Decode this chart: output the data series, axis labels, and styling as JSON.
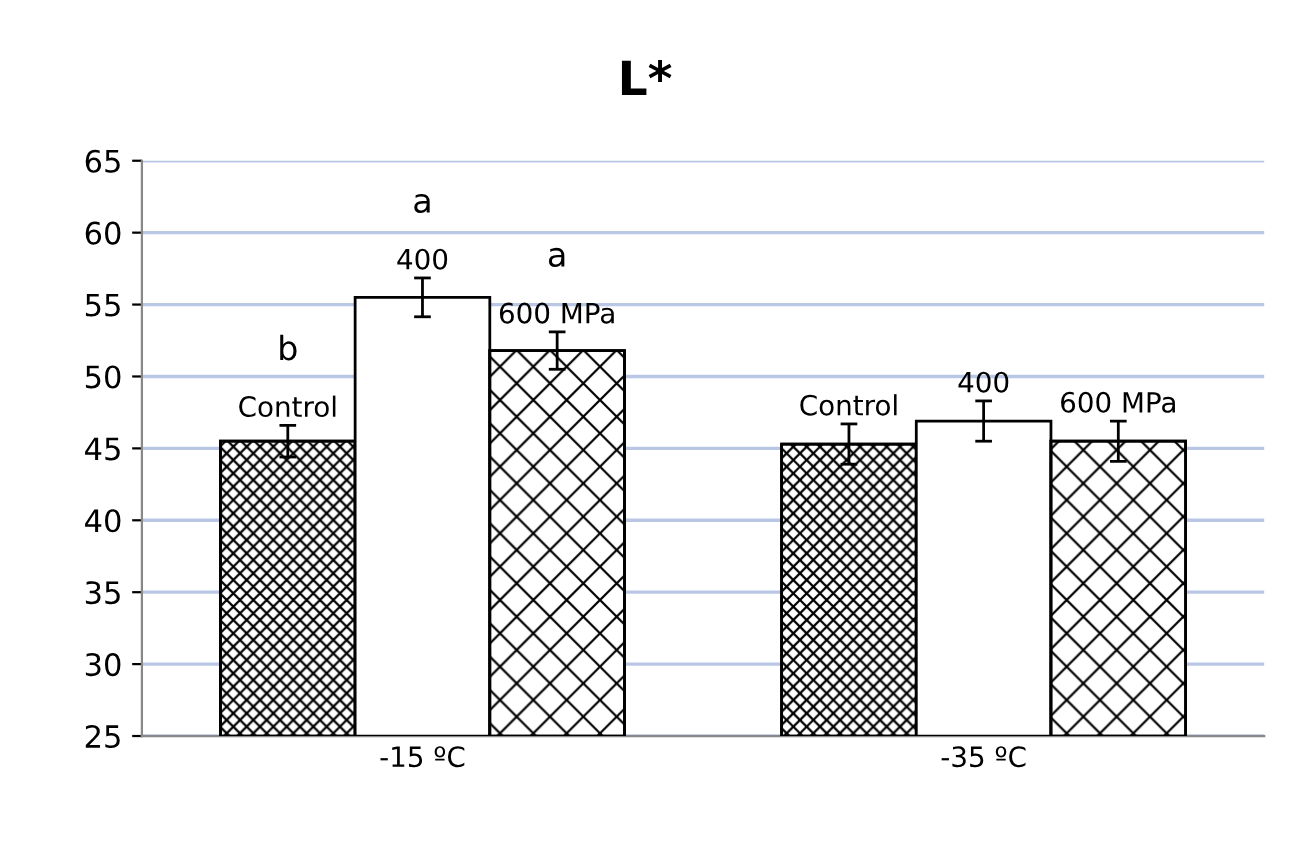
{
  "chart_data": {
    "type": "bar",
    "title": "L*",
    "categories": [
      "-15 ºC",
      "-35 ºC"
    ],
    "series": [
      {
        "name": "Control",
        "color": "#000000",
        "values": [
          45.5,
          45.3
        ],
        "errors": [
          1.1,
          1.4
        ]
      },
      {
        "name": "400",
        "color": "#ffffff",
        "values": [
          55.5,
          46.9
        ],
        "errors": [
          1.35,
          1.4
        ]
      },
      {
        "name": "600 MPa",
        "color": "#000000",
        "values": [
          51.8,
          45.5
        ],
        "errors": [
          1.3,
          1.4
        ]
      }
    ],
    "annotations": [
      "b",
      "a",
      "a"
    ],
    "ylim": [
      25,
      65
    ],
    "yticks": [
      25,
      30,
      35,
      40,
      45,
      50,
      55,
      60,
      65
    ],
    "grid": "y",
    "legend": false
  }
}
